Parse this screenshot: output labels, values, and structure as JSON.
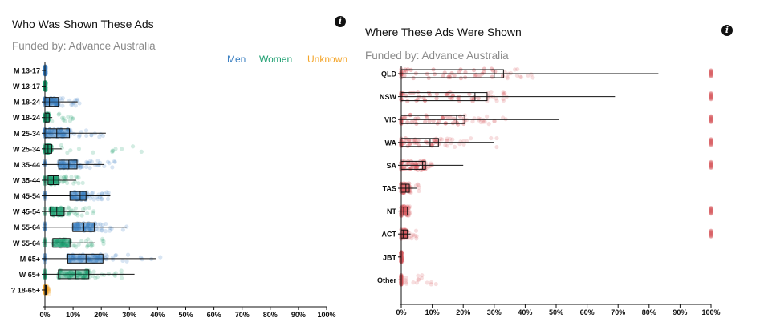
{
  "left": {
    "title": "Who Was Shown These Ads",
    "subtitle": "Funded by: Advance Australia",
    "legend": [
      {
        "label": "Men",
        "color": "#3a7fc1"
      },
      {
        "label": "Women",
        "color": "#1c9e6f"
      },
      {
        "label": "Unknown",
        "color": "#f4a52a"
      }
    ]
  },
  "right": {
    "title": "Where These Ads Were Shown",
    "subtitle": "Funded by: Advance Australia"
  },
  "info_icon": "info-icon",
  "chart_data": [
    {
      "type": "boxplot",
      "title": "Who Was Shown These Ads",
      "orientation": "horizontal",
      "xlim": [
        0,
        100
      ],
      "x_unit": "%",
      "x_ticks": [
        "0%",
        "10%",
        "20%",
        "30%",
        "40%",
        "50%",
        "60%",
        "70%",
        "80%",
        "90%",
        "100%"
      ],
      "categories": [
        "M 13-17",
        "W 13-17",
        "M 18-24",
        "W 18-24",
        "M 25-34",
        "W 25-34",
        "M 35-44",
        "W 35-44",
        "M 45-54",
        "W 45-54",
        "M 55-64",
        "W 55-64",
        "M 65+",
        "W 65+",
        "? 18-65+"
      ],
      "group": [
        "Men",
        "Women",
        "Men",
        "Women",
        "Men",
        "Women",
        "Men",
        "Women",
        "Men",
        "Women",
        "Men",
        "Women",
        "Men",
        "Women",
        "Unknown"
      ],
      "q1": [
        0,
        0,
        0,
        0,
        0,
        0,
        4.9,
        1.1,
        8.9,
        1.9,
        9.9,
        2.8,
        8.1,
        4.8,
        0
      ],
      "median": [
        0,
        0,
        1.6,
        0.6,
        4.2,
        1.1,
        8.5,
        3.0,
        12.5,
        4.2,
        13.8,
        6.4,
        14.6,
        10.9,
        0.3
      ],
      "q3": [
        0.2,
        0.2,
        4.8,
        1.5,
        8.7,
        2.4,
        11.4,
        4.9,
        14.6,
        6.8,
        17.5,
        8.9,
        20.6,
        15.6,
        0.5
      ],
      "whisker_max": [
        0.3,
        0.3,
        11.6,
        2.6,
        21.6,
        5.9,
        21,
        11.1,
        23.2,
        14.2,
        29,
        17.8,
        39.6,
        31.8,
        0.8
      ],
      "max_point": [
        0.3,
        0.3,
        14,
        10,
        23,
        39,
        25,
        14,
        24,
        19,
        30,
        22,
        41,
        28,
        1.5
      ]
    },
    {
      "type": "boxplot",
      "title": "Where These Ads Were Shown",
      "orientation": "horizontal",
      "xlim": [
        0,
        100
      ],
      "x_unit": "%",
      "x_ticks": [
        "0%",
        "10%",
        "20%",
        "30%",
        "40%",
        "50%",
        "60%",
        "70%",
        "80%",
        "90%",
        "100%"
      ],
      "categories": [
        "QLD",
        "NSW",
        "VIC",
        "WA",
        "SA",
        "TAS",
        "NT",
        "ACT",
        "JBT",
        "Other"
      ],
      "color": "#d65a5f",
      "q1": [
        0,
        0,
        0,
        0,
        0,
        0,
        0,
        0,
        0,
        0
      ],
      "median": [
        30,
        23.8,
        17.9,
        9.3,
        6.9,
        1.5,
        0.8,
        0.6,
        0,
        0
      ],
      "q3": [
        33,
        27.7,
        20.5,
        12,
        7.8,
        2.6,
        2,
        2,
        0,
        0
      ],
      "whisker_max": [
        83,
        69,
        51,
        30,
        20,
        5,
        2.5,
        3,
        0,
        0
      ],
      "max_point": [
        47,
        34,
        34,
        34,
        11,
        6,
        3,
        5,
        0.5,
        12
      ],
      "points_at_100": [
        true,
        true,
        true,
        true,
        true,
        false,
        true,
        true,
        false,
        false
      ]
    }
  ]
}
